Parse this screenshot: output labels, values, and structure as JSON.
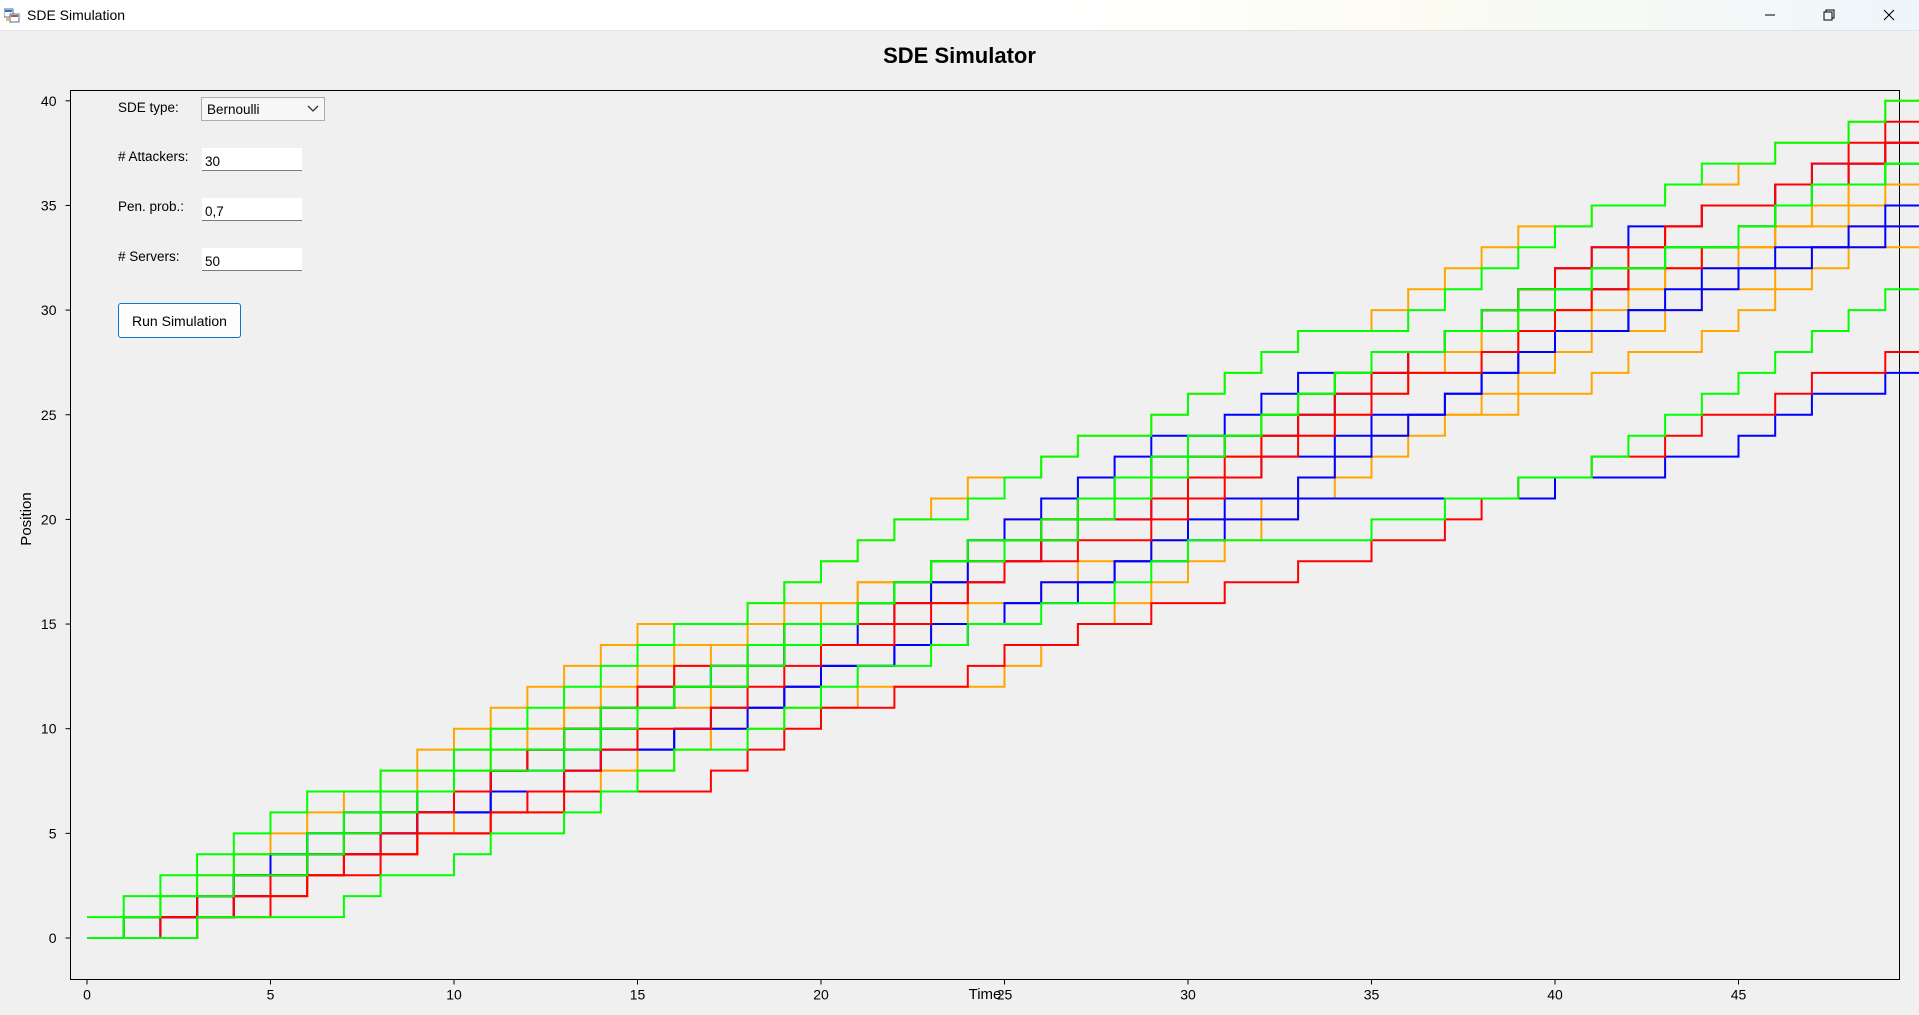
{
  "window": {
    "title": "SDE Simulation",
    "controls": [
      "minimize",
      "restore",
      "close"
    ]
  },
  "form": {
    "sde_type_label": "SDE type:",
    "sde_type_value": "Bernoulli",
    "attackers_label": "# Attackers:",
    "attackers_value": "30",
    "pen_prob_label": "Pen. prob.:",
    "pen_prob_value": "0,7",
    "servers_label": "# Servers:",
    "servers_value": "50",
    "run_button_label": "Run Simulation"
  },
  "chart_data": {
    "type": "line",
    "title": "SDE Simulator",
    "xlabel": "Time",
    "ylabel": "Position",
    "xlim": [
      0,
      49
    ],
    "ylim": [
      0,
      40
    ],
    "xticks": [
      0,
      5,
      10,
      15,
      20,
      25,
      30,
      35,
      40,
      45
    ],
    "yticks": [
      0,
      5,
      10,
      15,
      20,
      25,
      30,
      35,
      40
    ],
    "step": true,
    "grid": false,
    "legend": "none",
    "colors": [
      "#ffa500",
      "#0000ff",
      "#ff0000",
      "#00ff00"
    ],
    "series": [
      {
        "color": "#ffa500",
        "values": [
          0,
          0,
          1,
          2,
          2,
          3,
          4,
          5,
          6,
          7,
          8,
          9,
          10,
          11,
          12,
          13,
          14,
          14,
          14,
          15,
          16,
          17,
          17,
          18,
          19,
          19,
          20,
          21,
          21,
          22,
          23,
          23,
          24,
          24,
          25,
          26,
          27,
          27,
          28,
          29,
          29,
          30,
          31,
          32,
          32,
          33,
          34,
          35,
          36,
          37
        ]
      },
      {
        "color": "#ffa500",
        "values": [
          0,
          1,
          1,
          2,
          3,
          4,
          5,
          5,
          6,
          6,
          7,
          8,
          9,
          9,
          10,
          11,
          11,
          12,
          13,
          14,
          15,
          15,
          16,
          17,
          18,
          18,
          19,
          20,
          21,
          22,
          23,
          23,
          24,
          25,
          26,
          27,
          27,
          28,
          29,
          30,
          30,
          31,
          31,
          32,
          33,
          33,
          34,
          35,
          36,
          37
        ]
      },
      {
        "color": "#ffa500",
        "values": [
          0,
          0,
          0,
          1,
          1,
          2,
          3,
          4,
          4,
          5,
          6,
          7,
          7,
          8,
          8,
          9,
          9,
          10,
          11,
          12,
          13,
          13,
          14,
          15,
          16,
          16,
          17,
          18,
          18,
          19,
          20,
          20,
          21,
          22,
          23,
          24,
          25,
          25,
          26,
          27,
          28,
          29,
          29,
          30,
          31,
          31,
          32,
          33,
          34,
          34
        ]
      },
      {
        "color": "#ffa500",
        "values": [
          0,
          0,
          1,
          2,
          3,
          4,
          5,
          6,
          7,
          8,
          9,
          10,
          10,
          11,
          11,
          12,
          13,
          14,
          15,
          16,
          16,
          17,
          17,
          18,
          19,
          20,
          20,
          21,
          22,
          23,
          24,
          24,
          25,
          26,
          27,
          27,
          28,
          28,
          29,
          30,
          30,
          31,
          32,
          32,
          33,
          33,
          34,
          34,
          35,
          36
        ]
      },
      {
        "color": "#ffa500",
        "values": [
          0,
          1,
          2,
          3,
          4,
          5,
          6,
          7,
          8,
          9,
          10,
          11,
          12,
          13,
          14,
          15,
          15,
          15,
          16,
          17,
          18,
          19,
          20,
          21,
          22,
          22,
          23,
          24,
          24,
          25,
          26,
          27,
          28,
          29,
          29,
          30,
          31,
          32,
          33,
          34,
          34,
          35,
          35,
          36,
          36,
          37,
          38,
          38,
          39,
          40
        ]
      },
      {
        "color": "#ffa500",
        "values": [
          0,
          0,
          0,
          1,
          2,
          3,
          3,
          4,
          4,
          5,
          5,
          6,
          6,
          7,
          8,
          8,
          9,
          10,
          10,
          11,
          11,
          12,
          12,
          12,
          12,
          13,
          14,
          15,
          16,
          17,
          18,
          19,
          20,
          21,
          22,
          23,
          24,
          25,
          25,
          26,
          26,
          27,
          28,
          28,
          29,
          30,
          31,
          32,
          33,
          33
        ]
      },
      {
        "color": "#0000ff",
        "values": [
          0,
          0,
          0,
          1,
          3,
          4,
          5,
          6,
          6,
          7,
          7,
          8,
          8,
          9,
          10,
          11,
          12,
          13,
          14,
          15,
          15,
          16,
          17,
          17,
          18,
          19,
          20,
          21,
          22,
          23,
          23,
          24,
          24,
          25,
          26,
          27,
          28,
          29,
          30,
          31,
          32,
          33,
          34,
          34,
          35,
          35,
          36,
          37,
          37,
          38
        ]
      },
      {
        "color": "#0000ff",
        "values": [
          0,
          1,
          1,
          2,
          3,
          4,
          5,
          5,
          6,
          6,
          7,
          8,
          9,
          10,
          11,
          12,
          12,
          13,
          13,
          14,
          15,
          16,
          17,
          18,
          19,
          20,
          21,
          22,
          23,
          24,
          24,
          25,
          26,
          27,
          27,
          28,
          28,
          29,
          30,
          30,
          31,
          31,
          32,
          33,
          33,
          34,
          35,
          36,
          37,
          37
        ]
      },
      {
        "color": "#0000ff",
        "values": [
          0,
          0,
          1,
          2,
          3,
          3,
          4,
          5,
          5,
          6,
          6,
          7,
          7,
          8,
          9,
          9,
          10,
          10,
          11,
          12,
          13,
          13,
          14,
          14,
          15,
          16,
          17,
          17,
          18,
          19,
          20,
          21,
          21,
          22,
          23,
          24,
          25,
          26,
          27,
          28,
          29,
          29,
          30,
          31,
          32,
          32,
          33,
          33,
          34,
          35
        ]
      },
      {
        "color": "#0000ff",
        "values": [
          0,
          1,
          1,
          2,
          2,
          3,
          4,
          4,
          5,
          6,
          7,
          8,
          9,
          10,
          10,
          11,
          12,
          12,
          13,
          14,
          14,
          15,
          16,
          17,
          17,
          18,
          19,
          20,
          20,
          21,
          22,
          22,
          23,
          23,
          24,
          25,
          25,
          26,
          27,
          28,
          29,
          29,
          30,
          30,
          31,
          32,
          32,
          33,
          33,
          34
        ]
      },
      {
        "color": "#0000ff",
        "values": [
          0,
          0,
          1,
          1,
          2,
          3,
          4,
          4,
          5,
          6,
          6,
          7,
          7,
          8,
          9,
          9,
          10,
          11,
          11,
          12,
          13,
          13,
          14,
          15,
          15,
          16,
          16,
          17,
          18,
          18,
          19,
          20,
          20,
          21,
          21,
          21,
          21,
          21,
          21,
          21,
          22,
          22,
          22,
          23,
          23,
          24,
          25,
          26,
          26,
          27
        ]
      },
      {
        "color": "#ff0000",
        "values": [
          0,
          0,
          0,
          1,
          1,
          2,
          3,
          4,
          5,
          6,
          7,
          8,
          9,
          10,
          10,
          11,
          12,
          12,
          13,
          14,
          15,
          15,
          16,
          16,
          17,
          18,
          19,
          20,
          20,
          21,
          22,
          23,
          24,
          25,
          26,
          27,
          28,
          29,
          30,
          31,
          32,
          33,
          33,
          34,
          35,
          35,
          36,
          36,
          37,
          38
        ]
      },
      {
        "color": "#ff0000",
        "values": [
          0,
          1,
          1,
          2,
          3,
          3,
          4,
          5,
          6,
          6,
          7,
          8,
          9,
          10,
          11,
          12,
          13,
          13,
          14,
          15,
          15,
          16,
          17,
          18,
          18,
          19,
          20,
          21,
          21,
          22,
          23,
          24,
          25,
          26,
          27,
          28,
          28,
          29,
          30,
          31,
          32,
          32,
          33,
          34,
          35,
          35,
          36,
          37,
          38,
          39
        ]
      },
      {
        "color": "#ff0000",
        "values": [
          0,
          0,
          0,
          1,
          2,
          3,
          3,
          4,
          4,
          5,
          5,
          6,
          7,
          8,
          9,
          10,
          10,
          11,
          12,
          13,
          14,
          14,
          15,
          16,
          17,
          18,
          18,
          19,
          19,
          20,
          21,
          22,
          23,
          24,
          25,
          26,
          27,
          27,
          28,
          29,
          30,
          31,
          32,
          32,
          33,
          34,
          35,
          36,
          37,
          38
        ]
      },
      {
        "color": "#ff0000",
        "values": [
          0,
          0,
          1,
          1,
          2,
          2,
          3,
          3,
          4,
          5,
          5,
          6,
          6,
          7,
          7,
          7,
          7,
          8,
          9,
          10,
          11,
          11,
          12,
          12,
          13,
          14,
          14,
          15,
          15,
          16,
          16,
          17,
          17,
          18,
          18,
          19,
          19,
          20,
          21,
          22,
          22,
          23,
          23,
          24,
          25,
          25,
          26,
          27,
          27,
          28
        ]
      },
      {
        "color": "#00ff00",
        "values": [
          1,
          2,
          3,
          4,
          5,
          6,
          7,
          7,
          8,
          8,
          9,
          10,
          11,
          12,
          13,
          14,
          15,
          15,
          16,
          17,
          18,
          19,
          20,
          20,
          21,
          22,
          23,
          24,
          24,
          25,
          26,
          27,
          28,
          29,
          29,
          29,
          30,
          31,
          32,
          33,
          34,
          35,
          35,
          36,
          37,
          37,
          38,
          38,
          39,
          40
        ]
      },
      {
        "color": "#00ff00",
        "values": [
          0,
          1,
          2,
          3,
          4,
          4,
          5,
          6,
          7,
          7,
          8,
          9,
          9,
          10,
          11,
          11,
          12,
          12,
          13,
          14,
          15,
          16,
          17,
          18,
          19,
          19,
          20,
          21,
          22,
          23,
          24,
          24,
          25,
          26,
          27,
          28,
          28,
          29,
          29,
          30,
          31,
          32,
          32,
          33,
          33,
          34,
          35,
          36,
          36,
          37
        ]
      },
      {
        "color": "#00ff00",
        "values": [
          0,
          0,
          0,
          1,
          1,
          1,
          1,
          2,
          3,
          3,
          4,
          5,
          5,
          6,
          7,
          8,
          9,
          9,
          10,
          11,
          12,
          13,
          13,
          14,
          15,
          15,
          16,
          16,
          17,
          18,
          19,
          19,
          19,
          19,
          19,
          20,
          20,
          21,
          21,
          22,
          22,
          23,
          24,
          25,
          26,
          27,
          28,
          29,
          30,
          31
        ]
      },
      {
        "color": "#00ff00",
        "values": [
          0,
          1,
          2,
          2,
          3,
          3,
          4,
          5,
          6,
          7,
          8,
          8,
          8,
          9,
          10,
          11,
          12,
          13,
          14,
          15,
          15,
          16,
          17,
          18,
          18,
          19,
          19,
          20,
          21,
          22,
          23,
          24,
          25,
          26,
          27,
          28,
          28,
          29,
          30,
          31,
          31,
          32,
          32,
          33,
          33,
          34,
          35,
          36,
          36,
          37
        ]
      }
    ]
  }
}
